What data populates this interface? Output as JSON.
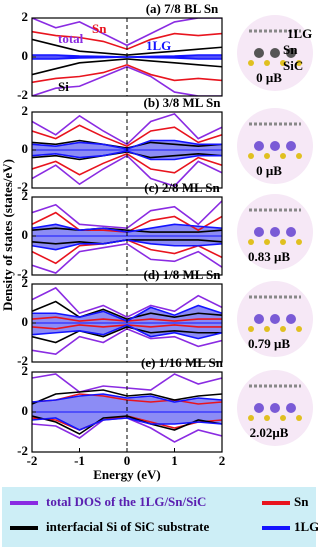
{
  "chart_data": [
    {
      "type": "line",
      "title": "(a) 7/8 BL Sn",
      "xlim": [
        -2,
        2
      ],
      "ylim": [
        -2,
        2
      ],
      "yticks": [
        -2,
        0,
        2
      ],
      "x": [
        -2,
        -1.5,
        -1,
        -0.5,
        0,
        0.5,
        1,
        1.5,
        2
      ],
      "series": [
        {
          "name": "total",
          "color": "#8a2be2",
          "values": [
            2,
            1.5,
            1.8,
            1.2,
            0.6,
            1.2,
            1.8,
            2,
            2
          ],
          "values_down": [
            -2,
            -1.6,
            -1.5,
            -1,
            -0.5,
            -1,
            -1.8,
            -2,
            -2
          ]
        },
        {
          "name": "Sn",
          "color": "#e8141e",
          "values": [
            1.3,
            1.1,
            1,
            0.8,
            0.4,
            0.9,
            1.2,
            1.1,
            1.2
          ],
          "values_down": [
            -1.3,
            -1.1,
            -1,
            -0.8,
            -0.4,
            -0.9,
            -1.2,
            -1.1,
            -1.2
          ]
        },
        {
          "name": "Si",
          "color": "#000000",
          "values": [
            0.9,
            0.6,
            0.3,
            0.2,
            0.1,
            0.2,
            0.3,
            0.4,
            0.5
          ],
          "values_down": [
            -0.9,
            -0.6,
            -0.3,
            -0.2,
            -0.1,
            -0.2,
            -0.3,
            -0.4,
            -0.5
          ]
        },
        {
          "name": "1LG",
          "color": "#1414ff",
          "values": [
            0.1,
            0.1,
            0.05,
            0.03,
            0,
            0.03,
            0.05,
            0.1,
            0.1
          ],
          "values_down": [
            -0.1,
            -0.1,
            -0.05,
            -0.03,
            0,
            -0.03,
            -0.05,
            -0.1,
            -0.1
          ]
        }
      ],
      "structure_labels": [
        "1LG",
        "Sn",
        "SiC"
      ],
      "moment": "0 μB"
    },
    {
      "type": "line",
      "title": "(b) 3/8 ML Sn",
      "xlim": [
        -2,
        2
      ],
      "ylim": [
        -2,
        2
      ],
      "yticks": [
        -2,
        0,
        2
      ],
      "x": [
        -2,
        -1.5,
        -1,
        -0.5,
        0,
        0.5,
        1,
        1.5,
        2
      ],
      "series": [
        {
          "color": "#8a2be2",
          "values": [
            1.5,
            0.8,
            1.8,
            1,
            0.3,
            1.5,
            1.9,
            0.6,
            1.2
          ],
          "values_down": [
            -1.5,
            -0.8,
            -1.8,
            -1,
            -0.3,
            -1.5,
            -1.9,
            -0.6,
            -1.2
          ]
        },
        {
          "color": "#e8141e",
          "values": [
            1,
            0.6,
            1.3,
            0.7,
            0.2,
            1,
            1.2,
            0.4,
            0.8
          ],
          "values_down": [
            -1,
            -0.6,
            -1.3,
            -0.7,
            -0.2,
            -1,
            -1.2,
            -0.4,
            -0.8
          ]
        },
        {
          "color": "#000000",
          "values": [
            0.4,
            0.3,
            0.5,
            0.3,
            0.1,
            0.4,
            0.3,
            0.2,
            0.3
          ],
          "values_down": [
            -0.4,
            -0.3,
            -0.5,
            -0.3,
            -0.1,
            -0.4,
            -0.3,
            -0.2,
            -0.3
          ]
        },
        {
          "color": "#1414ff",
          "values": [
            0.3,
            0.2,
            0.4,
            0.3,
            0.05,
            0.5,
            0.5,
            0.3,
            0.3
          ],
          "values_down": [
            -0.3,
            -0.2,
            -0.4,
            -0.3,
            -0.05,
            -0.5,
            -0.5,
            -0.3,
            -0.3
          ]
        }
      ],
      "moment": "0 μB"
    },
    {
      "type": "line",
      "title": "(c) 2/8 ML Sn",
      "xlim": [
        -2,
        2
      ],
      "ylim": [
        -2,
        2
      ],
      "yticks": [
        -2,
        0,
        2
      ],
      "ylabel": "Density of states (states/eV)",
      "x": [
        -2,
        -1.5,
        -1,
        -0.5,
        0,
        0.5,
        1,
        1.5,
        2
      ],
      "series": [
        {
          "color": "#8a2be2",
          "values": [
            1.2,
            1.6,
            0.6,
            0.5,
            0.4,
            1.3,
            1.5,
            0.6,
            1.8
          ],
          "values_down": [
            -1.5,
            -1.9,
            -0.8,
            -0.6,
            -0.4,
            -1.2,
            -1.3,
            -0.8,
            -1.6
          ]
        },
        {
          "color": "#e8141e",
          "values": [
            0.6,
            1.2,
            0.3,
            0.3,
            0.2,
            0.8,
            1,
            0.3,
            1
          ],
          "values_down": [
            -0.8,
            -1.4,
            -0.5,
            -0.4,
            -0.2,
            -0.7,
            -0.9,
            -0.5,
            -1.1
          ]
        },
        {
          "color": "#000000",
          "values": [
            0.3,
            0.4,
            0.3,
            0.4,
            0.3,
            0.2,
            0.2,
            0.2,
            0.3
          ],
          "values_down": [
            -0.3,
            -0.4,
            -0.3,
            -0.4,
            -0.2,
            -0.2,
            -0.2,
            -0.2,
            -0.3
          ]
        },
        {
          "color": "#1414ff",
          "values": [
            0.4,
            0.6,
            0.3,
            0.4,
            0.2,
            0.4,
            0.6,
            0.5,
            0.4
          ],
          "values_down": [
            -0.5,
            -0.7,
            -0.4,
            -0.4,
            -0.2,
            -0.4,
            -0.5,
            -0.5,
            -0.4
          ]
        }
      ],
      "moment": "0.83 μB"
    },
    {
      "type": "line",
      "title": "(d) 1/8 ML Sn",
      "xlim": [
        -2,
        2
      ],
      "ylim": [
        -2,
        2
      ],
      "yticks": [
        -2,
        0,
        2
      ],
      "x": [
        -2,
        -1.5,
        -1,
        -0.5,
        0,
        0.5,
        1,
        1.5,
        2
      ],
      "series": [
        {
          "color": "#8a2be2",
          "values": [
            1.2,
            1.8,
            0.5,
            0.9,
            0.3,
            0.9,
            0.6,
            1.4,
            0.8
          ],
          "values_down": [
            -1.4,
            -1.6,
            -0.7,
            -1,
            -0.3,
            -0.8,
            -0.7,
            -1.2,
            -0.9
          ]
        },
        {
          "color": "#e8141e",
          "values": [
            0.2,
            0.3,
            0.1,
            0.2,
            0.1,
            0.2,
            0.1,
            0.2,
            0.2
          ],
          "values_down": [
            -0.2,
            -0.3,
            -0.1,
            -0.2,
            -0.1,
            -0.2,
            -0.1,
            -0.2,
            -0.2
          ]
        },
        {
          "color": "#000000",
          "values": [
            0.6,
            1.1,
            0.3,
            0.7,
            0.2,
            0.5,
            0.3,
            0.5,
            0.4
          ],
          "values_down": [
            -0.7,
            -1,
            -0.4,
            -0.7,
            -0.2,
            -0.5,
            -0.4,
            -0.5,
            -0.5
          ]
        },
        {
          "color": "#1414ff",
          "values": [
            0.5,
            0.5,
            0.3,
            0.6,
            0.1,
            0.8,
            0.4,
            0.9,
            0.5
          ],
          "values_down": [
            -0.6,
            -0.5,
            -0.4,
            -0.6,
            -0.1,
            -0.7,
            -0.5,
            -0.8,
            -0.5
          ]
        }
      ],
      "moment": "0.79 μB"
    },
    {
      "type": "line",
      "title": "(e) 1/16 ML Sn",
      "xlim": [
        -2,
        2
      ],
      "ylim": [
        -2,
        2
      ],
      "yticks": [
        -2,
        0,
        2
      ],
      "xticks": [
        -2,
        -1,
        0,
        1,
        2
      ],
      "xlabel": "Energy (eV)",
      "x": [
        -2,
        -1.5,
        -1,
        -0.5,
        0,
        0.5,
        1,
        1.5,
        2
      ],
      "series": [
        {
          "color": "#8a2be2",
          "values": [
            1.7,
            1.9,
            1,
            1.3,
            1.2,
            1.1,
            1.9,
            1.4,
            1.7
          ],
          "values_down": [
            -0.6,
            -0.7,
            -1.3,
            -0.4,
            -0.3,
            -0.8,
            -1.5,
            -0.9,
            -1.2
          ]
        },
        {
          "color": "#e8141e",
          "values": [
            0.5,
            0.6,
            0.9,
            0.8,
            0.6,
            0.5,
            0.6,
            0.4,
            0.5
          ],
          "values_down": [
            -0.3,
            -0.4,
            -0.9,
            -0.4,
            -0.2,
            -0.5,
            -0.8,
            -0.5,
            -0.4
          ]
        },
        {
          "color": "#000000",
          "values": [
            0.4,
            0.9,
            1,
            1.1,
            0.8,
            0.9,
            0.6,
            0.8,
            0.9
          ],
          "values_down": [
            -0.2,
            -0.5,
            -1.1,
            -0.3,
            -0.2,
            -0.6,
            -0.9,
            -0.4,
            -0.6
          ]
        },
        {
          "color": "#1414ff",
          "values": [
            0.5,
            0.6,
            0.8,
            0.9,
            0.7,
            0.8,
            0.5,
            0.7,
            0.6
          ],
          "values_down": [
            -0.4,
            -0.3,
            -0.9,
            -0.4,
            -0.3,
            -0.6,
            -0.6,
            -0.5,
            -0.6
          ]
        }
      ],
      "moment": "2.02μB"
    }
  ],
  "legend": [
    {
      "label": "total DOS of the 1LG/Sn/SiC",
      "color": "#8a2be2"
    },
    {
      "label": "Sn",
      "color": "#e8141e"
    },
    {
      "label": "interfacial  Si of SiC substrate",
      "color": "#000000"
    },
    {
      "label": "1LG",
      "color": "#1414ff"
    }
  ]
}
